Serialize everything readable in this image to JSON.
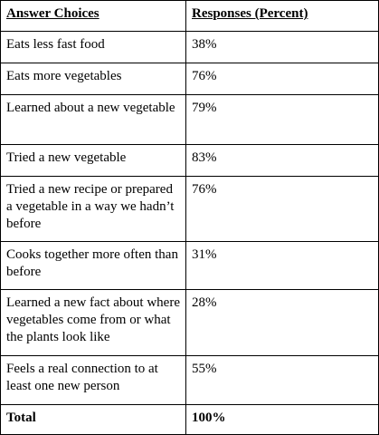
{
  "table": {
    "header": {
      "col1": "Answer Choices",
      "col2": "Responses (Percent)"
    },
    "rows": [
      {
        "choice": "Eats less fast food",
        "response": "38%"
      },
      {
        "choice": "Eats more vegetables",
        "response": "76%"
      },
      {
        "choice": "Learned about a new vegetable",
        "response": "79%"
      },
      {
        "choice": "Tried a new vegetable",
        "response": "83%"
      },
      {
        "choice": "Tried a new recipe or prepared a vegetable in a way we hadn’t before",
        "response": "76%"
      },
      {
        "choice": "Cooks together more often than before",
        "response": "31%"
      },
      {
        "choice": "Learned a new fact about where vegetables come from or what the plants look like",
        "response": "28%"
      },
      {
        "choice": "Feels a real connection to at least one new person",
        "response": "55%"
      }
    ],
    "total": {
      "label": "Total",
      "value": "100%"
    }
  }
}
